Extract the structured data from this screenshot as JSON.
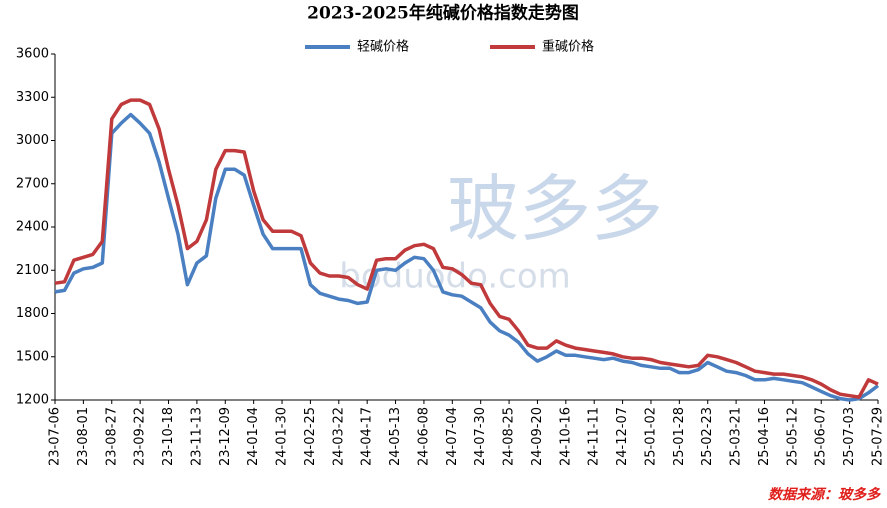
{
  "chart_data": {
    "type": "line",
    "title": "2023-2025年纯碱价格指数走势图",
    "source": "数据来源：玻多多",
    "watermark": [
      "玻多多",
      "boduodo.com"
    ],
    "categories": [
      "23-07-06",
      null,
      null,
      "23-08-01",
      null,
      null,
      "23-08-27",
      null,
      null,
      "23-09-22",
      null,
      null,
      "23-10-18",
      null,
      null,
      "23-11-13",
      null,
      null,
      "23-12-09",
      null,
      null,
      "24-01-04",
      null,
      null,
      "24-01-30",
      null,
      null,
      "24-02-25",
      null,
      null,
      "24-03-22",
      null,
      null,
      "24-04-17",
      null,
      null,
      "24-05-13",
      null,
      null,
      "24-06-08",
      null,
      null,
      "24-07-04",
      null,
      null,
      "24-07-30",
      null,
      null,
      "24-08-25",
      null,
      null,
      "24-09-20",
      null,
      null,
      "24-10-16",
      null,
      null,
      "24-11-11",
      null,
      null,
      "24-12-07",
      null,
      null,
      "25-01-02",
      null,
      null,
      "25-01-28",
      null,
      null,
      "25-02-23",
      null,
      null,
      "25-03-21",
      null,
      null,
      "25-04-16",
      null,
      null,
      "25-05-12",
      null,
      null,
      "25-06-07",
      null,
      null,
      "25-07-03",
      null,
      null,
      "25-07-29"
    ],
    "series": [
      {
        "name": "轻碱价格",
        "color": "#4a7fc1",
        "values": [
          1950,
          1960,
          2080,
          2110,
          2120,
          2150,
          3050,
          3120,
          3180,
          3120,
          3050,
          2850,
          2600,
          2350,
          2000,
          2150,
          2200,
          2600,
          2800,
          2800,
          2760,
          2550,
          2350,
          2250,
          2250,
          2250,
          2250,
          2000,
          1940,
          1920,
          1900,
          1890,
          1870,
          1880,
          2100,
          2110,
          2100,
          2150,
          2190,
          2180,
          2100,
          1950,
          1930,
          1920,
          1880,
          1840,
          1740,
          1680,
          1650,
          1600,
          1520,
          1470,
          1500,
          1540,
          1510,
          1510,
          1500,
          1490,
          1480,
          1490,
          1470,
          1460,
          1440,
          1430,
          1420,
          1420,
          1390,
          1390,
          1410,
          1460,
          1430,
          1400,
          1390,
          1370,
          1340,
          1340,
          1350,
          1340,
          1330,
          1320,
          1290,
          1260,
          1230,
          1210,
          1200,
          1210,
          1250,
          1300
        ]
      },
      {
        "name": "重碱价格",
        "color": "#c0393b",
        "values": [
          2010,
          2020,
          2170,
          2190,
          2210,
          2300,
          3150,
          3250,
          3280,
          3280,
          3250,
          3080,
          2800,
          2550,
          2250,
          2300,
          2450,
          2800,
          2930,
          2930,
          2920,
          2650,
          2450,
          2370,
          2370,
          2370,
          2340,
          2150,
          2080,
          2060,
          2060,
          2050,
          2000,
          1970,
          2170,
          2180,
          2180,
          2240,
          2270,
          2280,
          2250,
          2120,
          2110,
          2070,
          2010,
          2000,
          1870,
          1780,
          1760,
          1680,
          1580,
          1560,
          1560,
          1610,
          1580,
          1560,
          1550,
          1540,
          1530,
          1520,
          1500,
          1490,
          1490,
          1480,
          1460,
          1450,
          1440,
          1430,
          1440,
          1510,
          1500,
          1480,
          1460,
          1430,
          1400,
          1390,
          1380,
          1380,
          1370,
          1360,
          1340,
          1310,
          1270,
          1240,
          1230,
          1220,
          1340,
          1310
        ]
      }
    ],
    "ylim": [
      1200,
      3600
    ],
    "yticks": [
      1200,
      1500,
      1800,
      2100,
      2400,
      2700,
      3000,
      3300,
      3600
    ],
    "grid": false
  }
}
